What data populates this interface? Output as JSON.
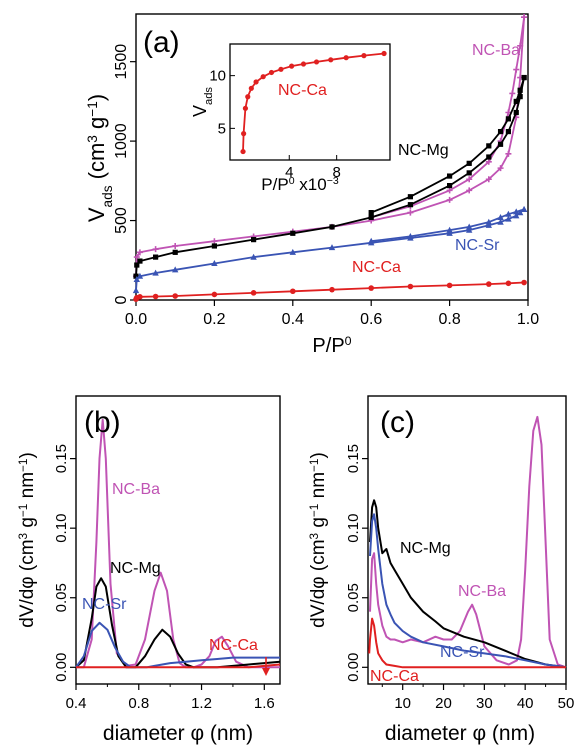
{
  "chart_data": [
    {
      "panel": "(a)",
      "type": "line",
      "xlabel": "P/P0",
      "ylabel": "Vads (cm3 g−1)",
      "xlim": [
        0,
        1
      ],
      "ylim": [
        0,
        1800
      ],
      "xticks": [
        "0.0",
        "0.2",
        "0.4",
        "0.6",
        "0.8",
        "1.0"
      ],
      "yticks": [
        "0",
        "500",
        "1000",
        "1500"
      ],
      "colors": {
        "NC-Ba": "#c054b4",
        "NC-Mg": "#000000",
        "NC-Sr": "#3a54b4",
        "NC-Ca": "#e02020"
      },
      "series": [
        {
          "name": "NC-Ba",
          "branch": "adsorption",
          "x": [
            0.0,
            0.002,
            0.01,
            0.05,
            0.1,
            0.2,
            0.3,
            0.4,
            0.5,
            0.6,
            0.7,
            0.8,
            0.85,
            0.9,
            0.93,
            0.95,
            0.97,
            0.98,
            0.99
          ],
          "y": [
            150,
            270,
            300,
            320,
            340,
            370,
            400,
            430,
            460,
            500,
            550,
            630,
            690,
            760,
            830,
            920,
            1150,
            1400,
            1780
          ]
        },
        {
          "name": "NC-Ba",
          "branch": "desorption",
          "x": [
            0.99,
            0.98,
            0.97,
            0.96,
            0.95,
            0.93,
            0.9,
            0.85,
            0.8,
            0.7,
            0.6
          ],
          "y": [
            1780,
            1600,
            1450,
            1300,
            1180,
            1000,
            870,
            760,
            690,
            590,
            520
          ]
        },
        {
          "name": "NC-Mg",
          "branch": "adsorption",
          "x": [
            0.0,
            0.002,
            0.01,
            0.05,
            0.1,
            0.2,
            0.3,
            0.4,
            0.5,
            0.6,
            0.7,
            0.8,
            0.85,
            0.9,
            0.93,
            0.95,
            0.97,
            0.98,
            0.99
          ],
          "y": [
            150,
            220,
            245,
            270,
            300,
            340,
            380,
            420,
            460,
            520,
            600,
            720,
            800,
            900,
            980,
            1060,
            1180,
            1280,
            1400
          ]
        },
        {
          "name": "NC-Mg",
          "branch": "desorption",
          "x": [
            0.99,
            0.98,
            0.97,
            0.95,
            0.93,
            0.9,
            0.85,
            0.8,
            0.7,
            0.6
          ],
          "y": [
            1400,
            1320,
            1250,
            1140,
            1060,
            970,
            860,
            780,
            650,
            550
          ]
        },
        {
          "name": "NC-Sr",
          "branch": "adsorption",
          "x": [
            0.0,
            0.002,
            0.01,
            0.05,
            0.1,
            0.2,
            0.3,
            0.4,
            0.5,
            0.6,
            0.7,
            0.8,
            0.85,
            0.9,
            0.93,
            0.95,
            0.97,
            0.98,
            0.99
          ],
          "y": [
            60,
            130,
            150,
            170,
            190,
            230,
            270,
            300,
            330,
            360,
            390,
            420,
            440,
            470,
            490,
            510,
            530,
            550,
            570
          ]
        },
        {
          "name": "NC-Sr",
          "branch": "desorption",
          "x": [
            0.99,
            0.97,
            0.95,
            0.93,
            0.9,
            0.85,
            0.8,
            0.7,
            0.6
          ],
          "y": [
            570,
            555,
            540,
            520,
            490,
            460,
            440,
            400,
            370
          ]
        },
        {
          "name": "NC-Ca",
          "branch": "adsorption",
          "x": [
            0.0,
            0.002,
            0.01,
            0.05,
            0.1,
            0.2,
            0.3,
            0.4,
            0.5,
            0.6,
            0.7,
            0.8,
            0.9,
            0.95,
            0.99
          ],
          "y": [
            5,
            15,
            20,
            22,
            25,
            35,
            45,
            55,
            65,
            75,
            85,
            92,
            100,
            105,
            110
          ]
        }
      ],
      "inset": {
        "type": "line",
        "xlabel": "P/P0 x10−3",
        "ylabel": "Vads",
        "xlim": [
          -1,
          12.5
        ],
        "ylim": [
          2,
          13
        ],
        "xticks": [
          "4",
          "8"
        ],
        "yticks": [
          "5",
          "10"
        ],
        "series": [
          {
            "name": "NC-Ca",
            "x": [
              0.1,
              0.15,
              0.3,
              0.5,
              0.8,
              1.2,
              1.8,
              2.5,
              3.3,
              4.2,
              5.2,
              6.3,
              7.5,
              8.8,
              10.3,
              12.0
            ],
            "y": [
              2.8,
              4.5,
              6.9,
              8.0,
              8.8,
              9.4,
              9.9,
              10.3,
              10.6,
              10.9,
              11.1,
              11.3,
              11.5,
              11.7,
              11.9,
              12.1
            ]
          }
        ]
      }
    },
    {
      "panel": "(b)",
      "type": "line",
      "xlabel": "diameter φ (nm)",
      "ylabel": "dV/dφ (cm3 g−1 nm−1)",
      "xlim": [
        0.4,
        1.7
      ],
      "ylim": [
        -0.012,
        0.195
      ],
      "xticks": [
        "0.4",
        "0.8",
        "1.2",
        "1.6"
      ],
      "yticks": [
        "0.00",
        "0.05",
        "0.10",
        "0.15"
      ],
      "series": [
        {
          "name": "NC-Ba",
          "x": [
            0.4,
            0.45,
            0.5,
            0.53,
            0.55,
            0.57,
            0.59,
            0.62,
            0.66,
            0.72,
            0.78,
            0.84,
            0.9,
            0.94,
            0.98,
            1.02,
            1.06,
            1.1,
            1.15,
            1.2,
            1.25,
            1.29,
            1.33,
            1.37,
            1.42,
            1.5,
            1.6,
            1.7
          ],
          "y": [
            0.0,
            0.0,
            0.02,
            0.09,
            0.15,
            0.178,
            0.15,
            0.06,
            0.01,
            0.001,
            0.002,
            0.02,
            0.055,
            0.068,
            0.055,
            0.02,
            0.003,
            0.0,
            0.0,
            0.002,
            0.008,
            0.019,
            0.022,
            0.015,
            0.004,
            0.0,
            0.0,
            0.0
          ]
        },
        {
          "name": "NC-Mg",
          "x": [
            0.4,
            0.45,
            0.5,
            0.53,
            0.56,
            0.59,
            0.63,
            0.67,
            0.72,
            0.78,
            0.84,
            0.9,
            0.95,
            1.0,
            1.05,
            1.1,
            1.15,
            1.2,
            1.3,
            1.4,
            1.5,
            1.6,
            1.7
          ],
          "y": [
            0.0,
            0.005,
            0.035,
            0.058,
            0.064,
            0.058,
            0.03,
            0.008,
            0.0,
            0.0,
            0.008,
            0.02,
            0.027,
            0.022,
            0.01,
            0.002,
            0.0,
            0.0,
            0.0,
            0.001,
            0.002,
            0.003,
            0.004
          ]
        },
        {
          "name": "NC-Sr",
          "x": [
            0.4,
            0.45,
            0.5,
            0.55,
            0.6,
            0.65,
            0.7,
            0.75,
            0.8,
            0.85,
            0.9,
            0.95,
            1.0,
            1.1,
            1.2,
            1.3,
            1.4,
            1.5,
            1.6,
            1.7
          ],
          "y": [
            0.0,
            0.008,
            0.026,
            0.032,
            0.027,
            0.014,
            0.004,
            0.0,
            0.0,
            0.0,
            0.001,
            0.002,
            0.003,
            0.004,
            0.005,
            0.006,
            0.007,
            0.007,
            0.007,
            0.007
          ]
        },
        {
          "name": "NC-Ca",
          "x": [
            0.4,
            0.6,
            0.8,
            1.0,
            1.2,
            1.4,
            1.5,
            1.6,
            1.7
          ],
          "y": [
            0.0,
            0.0,
            0.0,
            0.0,
            0.0,
            0.0,
            0.0,
            0.001,
            0.002
          ]
        }
      ]
    },
    {
      "panel": "(c)",
      "type": "line",
      "xlabel": "diameter φ (nm)",
      "ylabel": "dV/dφ (cm3 g−1 nm−1)",
      "xlim": [
        1.5,
        50
      ],
      "ylim": [
        -0.012,
        0.195
      ],
      "xticks": [
        "10",
        "20",
        "30",
        "40",
        "50"
      ],
      "yticks": [
        "0.00",
        "0.05",
        "0.10",
        "0.15"
      ],
      "series": [
        {
          "name": "NC-Ba",
          "x": [
            2,
            2.5,
            3,
            3.5,
            4,
            5,
            6,
            7,
            8,
            10,
            12,
            15,
            18,
            20,
            22,
            24,
            26,
            27,
            28,
            30,
            33,
            36,
            38,
            39,
            40,
            41,
            42,
            43,
            44,
            45,
            46,
            48,
            50
          ],
          "y": [
            0.04,
            0.078,
            0.082,
            0.06,
            0.045,
            0.03,
            0.022,
            0.02,
            0.02,
            0.018,
            0.02,
            0.018,
            0.022,
            0.02,
            0.02,
            0.026,
            0.04,
            0.045,
            0.038,
            0.015,
            0.005,
            0.002,
            0.005,
            0.02,
            0.07,
            0.13,
            0.17,
            0.18,
            0.16,
            0.09,
            0.02,
            0.002,
            0.0
          ]
        },
        {
          "name": "NC-Mg",
          "x": [
            2,
            2.5,
            3,
            3.5,
            4,
            5,
            6,
            7,
            8,
            10,
            12,
            15,
            18,
            20,
            25,
            30,
            35,
            40,
            45,
            50
          ],
          "y": [
            0.09,
            0.115,
            0.12,
            0.115,
            0.1,
            0.082,
            0.085,
            0.075,
            0.07,
            0.06,
            0.05,
            0.04,
            0.033,
            0.028,
            0.022,
            0.018,
            0.012,
            0.006,
            0.002,
            0.0
          ]
        },
        {
          "name": "NC-Sr",
          "x": [
            2,
            2.5,
            3,
            3.5,
            4,
            5,
            6,
            7,
            8,
            10,
            12,
            15,
            20,
            25,
            30,
            35,
            40,
            45,
            50
          ],
          "y": [
            0.08,
            0.105,
            0.11,
            0.1,
            0.085,
            0.06,
            0.045,
            0.038,
            0.032,
            0.026,
            0.022,
            0.018,
            0.015,
            0.012,
            0.01,
            0.008,
            0.005,
            0.002,
            0.0
          ]
        },
        {
          "name": "NC-Ca",
          "x": [
            1.8,
            2,
            2.5,
            3,
            3.5,
            4,
            5,
            6,
            8,
            10,
            15,
            20,
            30,
            40,
            50
          ],
          "y": [
            0.01,
            0.02,
            0.035,
            0.03,
            0.018,
            0.01,
            0.005,
            0.002,
            0.001,
            0.0,
            0.0,
            0.0,
            0.0,
            0.0,
            0.0
          ]
        }
      ]
    }
  ]
}
